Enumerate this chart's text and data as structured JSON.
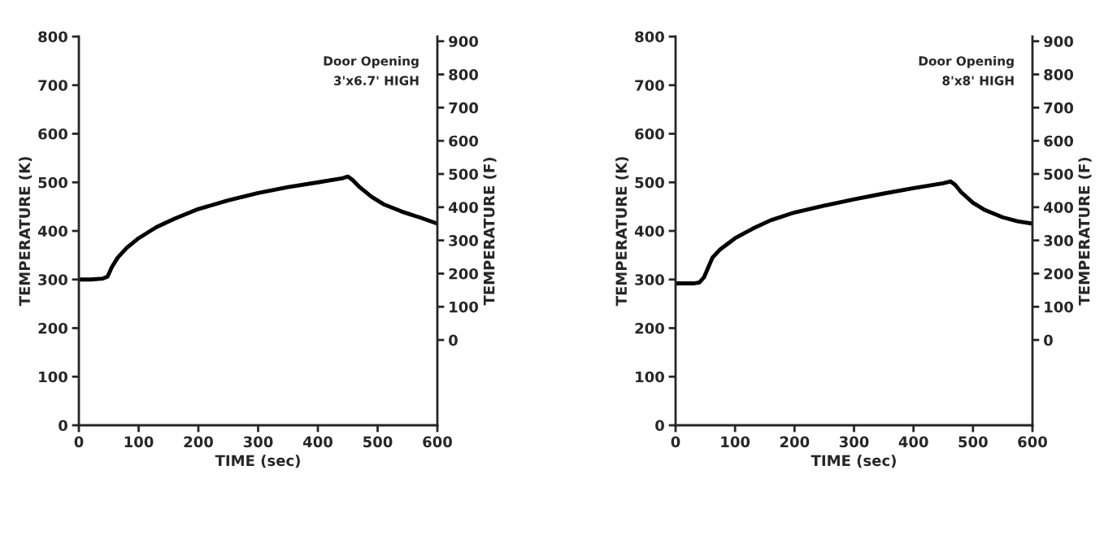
{
  "chart_data": [
    {
      "type": "line",
      "xlabel": "TIME (sec)",
      "ylabel": "TEMPERATURE (K)",
      "y2label": "TEMPERATURE (F)",
      "annotations": [
        "Door Opening\n3'x6.7' HIGH"
      ],
      "xlim": [
        0,
        600
      ],
      "xticks": [
        0,
        100,
        200,
        300,
        400,
        500,
        600
      ],
      "ylim": [
        0,
        800
      ],
      "yticks": [
        0,
        100,
        200,
        300,
        400,
        500,
        600,
        700,
        800
      ],
      "y2lim": [
        -257,
        914
      ],
      "y2ticks": [
        0,
        100,
        200,
        300,
        400,
        500,
        600,
        700,
        800,
        900
      ],
      "grid": false,
      "legend": false,
      "series": [
        {
          "color": "#000000",
          "x": [
            0,
            20,
            40,
            48,
            55,
            65,
            80,
            100,
            130,
            160,
            200,
            250,
            300,
            350,
            400,
            440,
            450,
            458,
            470,
            490,
            510,
            540,
            570,
            600
          ],
          "values": [
            300,
            300,
            302,
            306,
            325,
            345,
            365,
            385,
            408,
            425,
            445,
            463,
            478,
            490,
            500,
            508,
            512,
            505,
            490,
            470,
            455,
            440,
            428,
            415
          ]
        }
      ]
    },
    {
      "type": "line",
      "xlabel": "TIME (sec)",
      "ylabel": "TEMPERATURE (K)",
      "y2label": "TEMPERATURE (F)",
      "annotations": [
        "Door Opening\n8'x8' HIGH"
      ],
      "xlim": [
        0,
        600
      ],
      "xticks": [
        0,
        100,
        200,
        300,
        400,
        500,
        600
      ],
      "ylim": [
        0,
        800
      ],
      "yticks": [
        0,
        100,
        200,
        300,
        400,
        500,
        600,
        700,
        800
      ],
      "y2lim": [
        -257,
        914
      ],
      "y2ticks": [
        0,
        100,
        200,
        300,
        400,
        500,
        600,
        700,
        800,
        900
      ],
      "grid": false,
      "legend": false,
      "series": [
        {
          "color": "#000000",
          "x": [
            0,
            30,
            40,
            48,
            55,
            62,
            75,
            100,
            130,
            160,
            200,
            250,
            300,
            350,
            400,
            450,
            462,
            470,
            480,
            500,
            520,
            550,
            575,
            600
          ],
          "values": [
            292,
            292,
            294,
            305,
            325,
            345,
            362,
            385,
            405,
            422,
            438,
            452,
            465,
            477,
            488,
            498,
            502,
            495,
            480,
            458,
            443,
            428,
            420,
            415
          ]
        }
      ]
    }
  ]
}
